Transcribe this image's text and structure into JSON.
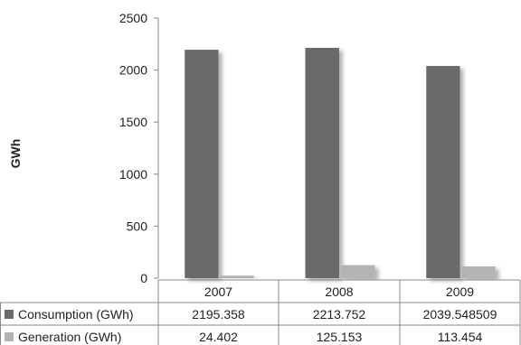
{
  "chart_data": {
    "type": "bar",
    "categories": [
      "2007",
      "2008",
      "2009"
    ],
    "series": [
      {
        "name": "Consumption (GWh)",
        "values": [
          2195.358,
          2213.752,
          2039.548509
        ],
        "labels": [
          "2195.358",
          "2213.752",
          "2039.548509"
        ],
        "color": "#6b6b6b"
      },
      {
        "name": "Generation (GWh)",
        "values": [
          24.402,
          125.153,
          113.454
        ],
        "labels": [
          "24.402",
          "125.153",
          "113.454"
        ],
        "color": "#b3b3b3"
      }
    ],
    "title": "",
    "xlabel": "",
    "ylabel": "GWh",
    "ylim": [
      0,
      2500
    ],
    "yticks": [
      "0",
      "500",
      "1000",
      "1500",
      "2000",
      "2500"
    ],
    "grid": false,
    "legend": "data table below chart"
  }
}
